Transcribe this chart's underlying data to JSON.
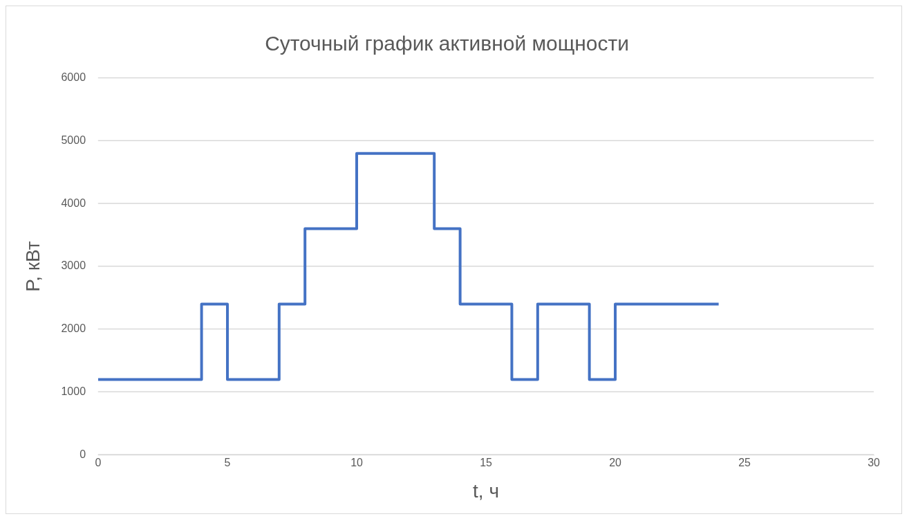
{
  "chart_data": {
    "type": "step",
    "title": "Суточный график активной мощности",
    "xlabel": "t, ч",
    "ylabel": "P, кВт",
    "x": [
      0,
      4,
      5,
      7,
      8,
      10,
      13,
      14,
      16,
      17,
      19,
      20,
      24
    ],
    "values": [
      1200,
      2400,
      1200,
      2400,
      3600,
      4800,
      3600,
      2400,
      1200,
      2400,
      1200,
      2400,
      2400
    ],
    "color": "#4472c4",
    "xlim": [
      0,
      30
    ],
    "xticks": [
      0,
      5,
      10,
      15,
      20,
      25,
      30
    ],
    "ylim": [
      0,
      6000
    ],
    "yticks": [
      0,
      1000,
      2000,
      3000,
      4000,
      5000,
      6000
    ],
    "grid": "y"
  }
}
